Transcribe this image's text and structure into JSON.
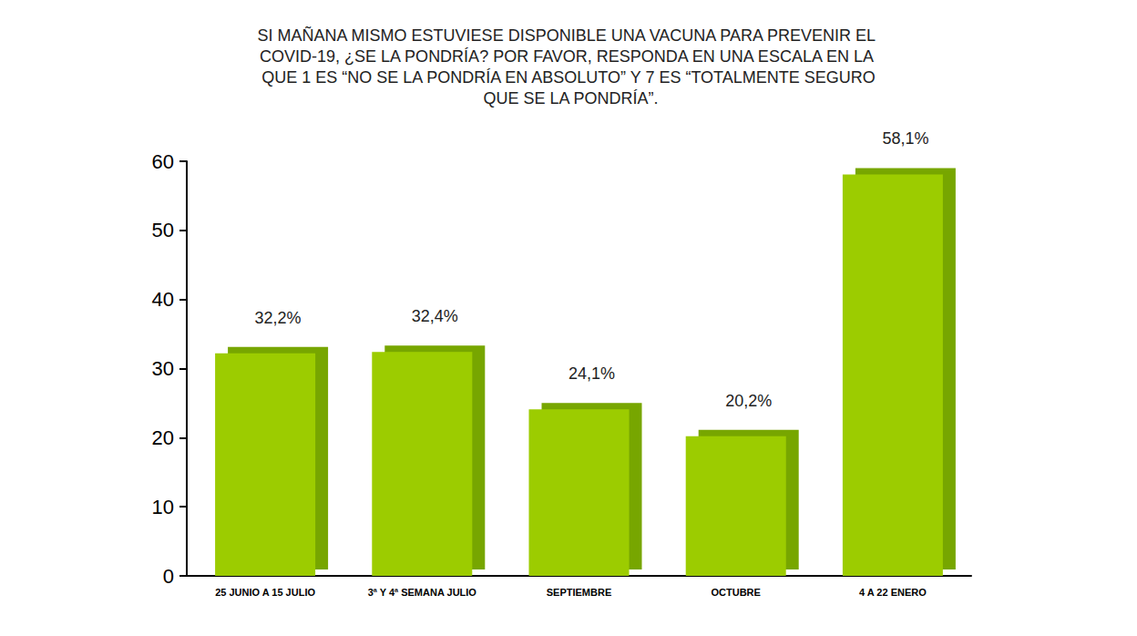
{
  "chart_data": {
    "type": "bar",
    "title": "SI MAÑANA MISMO ESTUVIESE DISPONIBLE UNA VACUNA PARA PREVENIR EL COVID-19, ¿SE LA PONDRÍA? POR FAVOR, RESPONDA EN UNA ESCALA EN LA QUE 1 ES “NO SE LA PONDRÍA EN ABSOLUTO” Y 7 ES “TOTALMENTE SEGURO QUE SE LA PONDRÍA”.",
    "categories": [
      "25 JUNIO A 15 JULIO",
      "3ª Y 4ª SEMANA JULIO",
      "SEPTIEMBRE",
      "OCTUBRE",
      "4 A 22 ENERO"
    ],
    "values": [
      32.2,
      32.4,
      24.1,
      20.2,
      58.1
    ],
    "value_labels": [
      "32,2%",
      "32,4%",
      "24,1%",
      "20,2%",
      "58,1%"
    ],
    "data_labels": true,
    "color": "#9ccc04",
    "ylim": [
      0,
      60
    ],
    "yticks": [
      0,
      10,
      20,
      30,
      40,
      50,
      60
    ],
    "grid": false
  }
}
